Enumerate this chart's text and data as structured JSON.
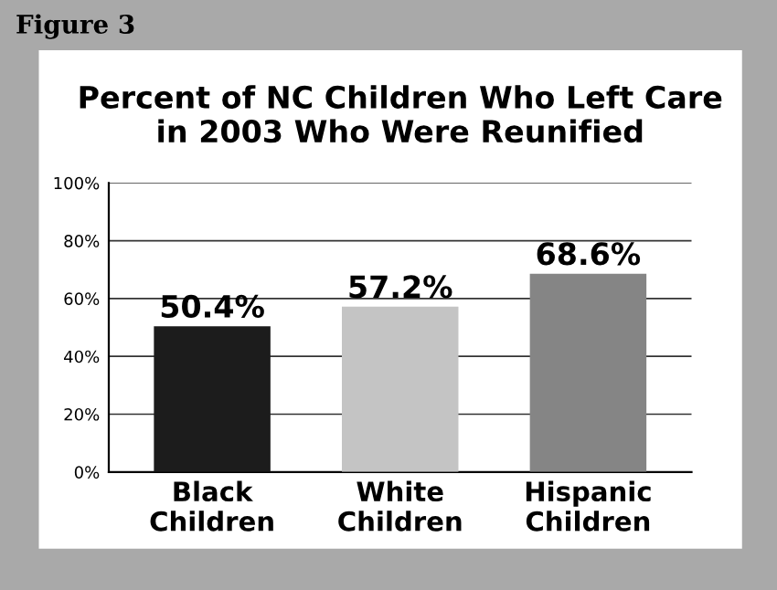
{
  "chart_data": {
    "type": "bar",
    "title": "Percent of NC Children Who Left Care\nin 2003 Who Were Reunified",
    "categories": [
      "Black\nChildren",
      "White\nChildren",
      "Hispanic\nChildren"
    ],
    "values": [
      50.4,
      57.2,
      68.6
    ],
    "colors": [
      "#1c1c1c",
      "#c4c4c4",
      "#858585"
    ],
    "value_labels": [
      "50.4%",
      "57.2%",
      "68.6%"
    ],
    "ylim": [
      0,
      100
    ],
    "yticks": [
      {
        "value": 0,
        "label": "0%"
      },
      {
        "value": 20,
        "label": "20%"
      },
      {
        "value": 40,
        "label": "40%"
      },
      {
        "value": 60,
        "label": "60%"
      },
      {
        "value": 80,
        "label": "80%"
      },
      {
        "value": 100,
        "label": "100%"
      }
    ],
    "grid": "y",
    "annotations": [
      "Figure 3"
    ]
  }
}
